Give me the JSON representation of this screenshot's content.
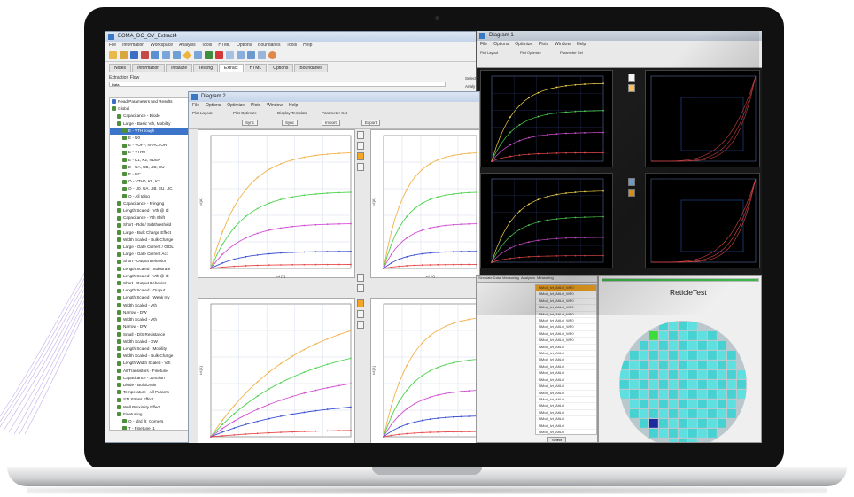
{
  "main_window": {
    "title": "EOMA_DC_CV_Extract4",
    "menu": [
      "File",
      "Information",
      "Workspace",
      "Analysis",
      "Tools",
      "HTML",
      "Options",
      "Boundaries",
      "Tools",
      "Help"
    ],
    "tabs": [
      "Notes",
      "Information",
      "Initialize",
      "Testing",
      "Extract",
      "HTML",
      "Options",
      "Boundaries"
    ],
    "active_tab": "Extract",
    "extraction_flow_label": "Extraction Flow",
    "data_field": "Data",
    "tree_items": [
      "Read Parameters and Results",
      "Global",
      "Capacitance - Diode",
      "Large - Basic Vth, Mobility",
      "E - VTH rough",
      "E - U0",
      "E - VOFF, NFACTOR",
      "E - VTH0",
      "E - K1, K2, NDEP",
      "E - UA, UB, UD, EU",
      "E - UC",
      "O - VTH0, K1, K2",
      "O - U0, UA, UB, EU, UC",
      "O - All Idlog",
      "Capacitance - Fringing",
      "Length Scaled - Vth @ Id",
      "Capacitance - Vth Shift",
      "Short - Rds / Subthreshold",
      "Large - Bulk Charge Effect",
      "Width Scaled - Bulk Charge",
      "Large - Gate Current / GIDL",
      "Large - Gate Current Acc",
      "Short - Output Behavior",
      "Length Scaled - Substrate",
      "Length Scaled - Vth @ Id",
      "Short - Output Behavior",
      "Length Scaled - Output",
      "Length Scaled - Weak Inv",
      "Width Scaled - Vth",
      "Narrow - DW",
      "Width Scaled - Vth",
      "Narrow - DW",
      "Small - D/S Resistance",
      "Width Scaled - DW",
      "Length Scaled - Mobility",
      "Width Scaled - Bulk Charge",
      "Length Width Scaled - Vth",
      "All Transistors - Finetune",
      "Capacitance - Junction",
      "Diode - Bulk/Drain",
      "Temperature - All Params",
      "STI Stress Effect",
      "Well Proximity Effect",
      "Finetuning",
      "O - Idrd_lt_Corners",
      "T - Finetune_1",
      "O - Finetune_2",
      "Save Parameters"
    ],
    "selected_tree_index": 4,
    "right_labels": [
      "Select",
      "Analy"
    ]
  },
  "plot_window": {
    "title": "Diagram 2",
    "menu": [
      "File",
      "Options",
      "Optimize",
      "Plots",
      "Window",
      "Help"
    ],
    "toolbar_labels": [
      "Plot Layout",
      "Plot Optimize",
      "Display Template",
      "Parameter Set"
    ],
    "toolbar_buttons": [
      "Sync",
      "Sync",
      "Import",
      "Export"
    ],
    "xlabel": "vd [V]",
    "ylabel": "id [A]",
    "series_colors": [
      "#f2b24a",
      "#4fd24f",
      "#d24fd2",
      "#3a4fd2",
      "#e84a4a"
    ],
    "side_buttons": [
      "1",
      "2",
      "3",
      "4"
    ]
  },
  "dark_window": {
    "title": "Diagram 1",
    "menu": [
      "File",
      "Options",
      "Optimize",
      "Plots",
      "Window",
      "Help"
    ],
    "toolbar_labels": [
      "Plot Layout",
      "Plot Optimize",
      "Parameter Set"
    ],
    "series_colors": [
      "#f2d24a",
      "#4fd24f",
      "#d24fd2",
      "#e84a4a"
    ]
  },
  "list_panel": {
    "tabs": [
      "Simulate Data",
      "Measuring",
      "Analyses",
      "Measuring"
    ],
    "items": [
      "NMod_lvt_AltLvl_WF0",
      "NMod_lvt_AltLvl_WF0",
      "NMod_lvt_AltLvl_WF0",
      "NMod_lvt_AltLvl_WF0",
      "NMod_lvt_AltLvl_WF0",
      "NMod_lvt_AltLvl_WF0",
      "NMod_lvt_AltLvl_WF0",
      "NMod_lvt_AltLvl_WF0",
      "NMod_lvt_AltLvl_WF0",
      "NMod_lvt_AltLvl",
      "NMod_lvt_AltLvl",
      "NMod_lvt_AltLvl",
      "NMod_lvt_AltLvl",
      "NMod_lvt_AltLvl",
      "NMod_lvt_AltLvl",
      "NMod_lvt_AltLvl",
      "NMod_lvt_AltLvl",
      "NMod_lvt_AltLvl",
      "NMod_lvt_AltLvl",
      "NMod_lvt_AltLvl",
      "NMod_lvt_AltLvl",
      "NMod_lvt_AltLvl",
      "NMod_lvt_AltLvl",
      "NMod_lvt_AltLvl",
      "NMod_lvt_AltLvl"
    ],
    "button": "Select"
  },
  "wafer_panel": {
    "title": "ReticleTest",
    "progress": 1.0,
    "die_color": "#46d2d2",
    "die_alt_color": "#5fe0e0",
    "highlight_green": "#3cdc3c",
    "highlight_blue": "#1e2aa0",
    "wafer_bg": "#b9c8cc"
  }
}
